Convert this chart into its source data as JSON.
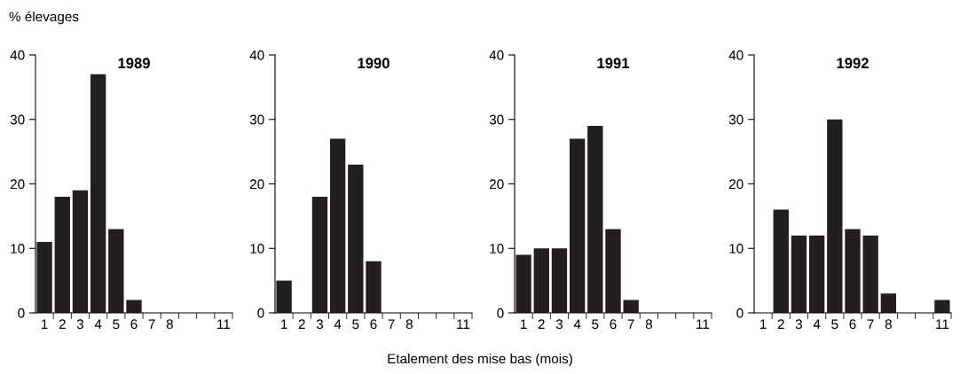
{
  "chart_data": [
    {
      "type": "bar",
      "title": "1989",
      "ylabel": "% élevages",
      "categories": [
        "1",
        "2",
        "3",
        "4",
        "5",
        "6",
        "7",
        "8",
        null,
        null,
        "11"
      ],
      "values": [
        11,
        18,
        19,
        37,
        13,
        2,
        0,
        0,
        0,
        0,
        0
      ],
      "color": "#231f20",
      "ylim": [
        0,
        40
      ],
      "yticks": [
        0,
        10,
        20,
        30,
        40
      ],
      "grid": false
    },
    {
      "type": "bar",
      "title": "1990",
      "xlabel": "Etalement des mise bas (mois)",
      "categories": [
        "1",
        "2",
        "3",
        "4",
        "5",
        "6",
        "7",
        "8",
        null,
        null,
        "11"
      ],
      "values": [
        5,
        0,
        18,
        27,
        23,
        8,
        0,
        0,
        0,
        0,
        0
      ],
      "color": "#231f20",
      "ylim": [
        0,
        40
      ],
      "yticks": [
        0,
        10,
        20,
        30,
        40
      ],
      "grid": false
    },
    {
      "type": "bar",
      "title": "1991",
      "categories": [
        "1",
        "2",
        "3",
        "4",
        "5",
        "6",
        "7",
        "8",
        null,
        null,
        "11"
      ],
      "values": [
        9,
        10,
        10,
        27,
        29,
        13,
        2,
        0,
        0,
        0,
        0
      ],
      "color": "#231f20",
      "ylim": [
        0,
        40
      ],
      "yticks": [
        0,
        10,
        20,
        30,
        40
      ],
      "grid": false
    },
    {
      "type": "bar",
      "title": "1992",
      "categories": [
        "1",
        "2",
        "3",
        "4",
        "5",
        "6",
        "7",
        "8",
        null,
        null,
        "11"
      ],
      "values": [
        0,
        16,
        12,
        12,
        30,
        13,
        12,
        3,
        0,
        0,
        2
      ],
      "color": "#231f20",
      "ylim": [
        0,
        40
      ],
      "yticks": [
        0,
        10,
        20,
        30,
        40
      ],
      "grid": false
    }
  ]
}
